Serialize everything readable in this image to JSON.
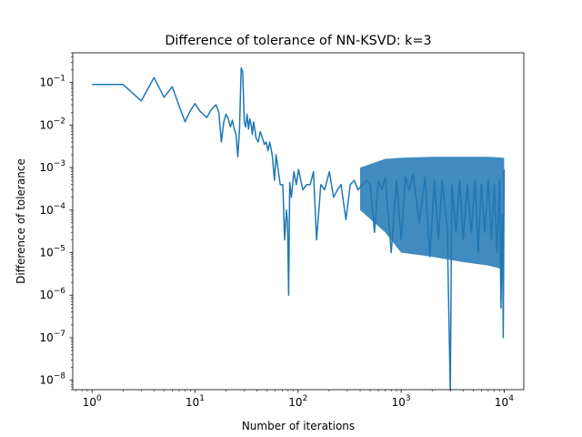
{
  "chart_data": {
    "type": "line",
    "title": "Difference of tolerance of NN-KSVD: k=3",
    "xlabel": "Number of iterations",
    "ylabel": "Difference of tolerance",
    "xscale": "log",
    "yscale": "log",
    "xlim": [
      0.65,
      15500
    ],
    "ylim": [
      6e-09,
      0.5
    ],
    "grid": false,
    "legend": "none",
    "line_color": "#1f77b4",
    "x_ticks": [
      {
        "value": 1,
        "base": "10",
        "exp": "0"
      },
      {
        "value": 10,
        "base": "10",
        "exp": "1"
      },
      {
        "value": 100,
        "base": "10",
        "exp": "2"
      },
      {
        "value": 1000,
        "base": "10",
        "exp": "3"
      },
      {
        "value": 10000,
        "base": "10",
        "exp": "4"
      }
    ],
    "y_ticks": [
      {
        "value": 1e-08,
        "base": "10",
        "exp": "−8"
      },
      {
        "value": 1e-07,
        "base": "10",
        "exp": "−7"
      },
      {
        "value": 1e-06,
        "base": "10",
        "exp": "−6"
      },
      {
        "value": 1e-05,
        "base": "10",
        "exp": "−5"
      },
      {
        "value": 0.0001,
        "base": "10",
        "exp": "−4"
      },
      {
        "value": 0.001,
        "base": "10",
        "exp": "−3"
      },
      {
        "value": 0.01,
        "base": "10",
        "exp": "−2"
      },
      {
        "value": 0.1,
        "base": "10",
        "exp": "−1"
      }
    ],
    "series": [
      {
        "x": [
          0,
          1,
          2,
          3,
          4,
          5,
          6,
          7,
          8,
          9,
          10,
          11,
          12,
          13,
          14,
          15,
          16,
          17,
          18,
          19,
          20,
          21,
          22,
          23,
          24,
          25,
          26,
          27,
          28,
          29,
          30,
          31,
          32,
          33,
          34,
          35,
          36,
          37,
          38,
          39,
          40,
          42,
          44,
          46,
          48,
          50,
          52,
          55,
          58,
          60,
          63,
          66,
          70,
          73,
          76,
          78,
          80,
          82,
          85,
          90,
          95,
          100,
          110,
          120,
          130,
          140,
          150,
          165,
          180,
          200,
          220,
          240,
          260,
          290,
          320,
          350,
          380,
          420,
          460,
          500,
          550,
          600,
          650,
          700,
          800,
          900,
          1000,
          1100,
          1200,
          1300,
          1500,
          1700,
          1900,
          2100,
          2300,
          2500,
          2800,
          3000,
          3100,
          3400,
          3700,
          4000,
          4400,
          4800,
          5200,
          5600,
          6000,
          6500,
          7000,
          7500,
          8000,
          8500,
          9000,
          9300,
          9600,
          9800,
          10000
        ],
        "y": [
          0.09,
          0.09,
          0.037,
          0.13,
          0.045,
          0.08,
          0.028,
          0.012,
          0.022,
          0.032,
          0.022,
          0.018,
          0.015,
          0.021,
          0.026,
          0.03,
          0.02,
          0.004,
          0.012,
          0.018,
          0.014,
          0.009,
          0.013,
          0.008,
          0.006,
          0.0018,
          0.008,
          0.22,
          0.18,
          0.012,
          0.009,
          0.018,
          0.008,
          0.014,
          0.01,
          0.006,
          0.012,
          0.008,
          0.005,
          0.0045,
          0.004,
          0.007,
          0.005,
          0.0035,
          0.004,
          0.0025,
          0.004,
          0.002,
          0.0005,
          0.002,
          0.0009,
          0.0004,
          0.0004,
          2e-05,
          0.0001,
          5e-05,
          1e-06,
          0.00045,
          0.0002,
          0.0008,
          0.0004,
          0.0009,
          0.0003,
          0.0004,
          0.0004,
          0.0008,
          2e-05,
          0.0004,
          0.0003,
          0.0008,
          0.0002,
          0.0003,
          0.0004,
          6e-05,
          0.0004,
          0.0005,
          0.0003,
          0.0004,
          0.0005,
          0.0004,
          3e-05,
          0.0005,
          0.0003,
          0.0006,
          1e-05,
          0.0005,
          2e-05,
          0.0006,
          0.0003,
          0.0007,
          5e-05,
          0.0006,
          8e-06,
          0.0005,
          2e-05,
          0.0005,
          4e-05,
          5e-09,
          0.0004,
          3e-05,
          0.0005,
          2e-05,
          0.0004,
          3e-05,
          0.0005,
          1e-05,
          0.0004,
          3e-05,
          0.0005,
          2e-05,
          0.0004,
          1e-05,
          0.0005,
          5e-07,
          8e-05,
          1e-07,
          0.0009
        ],
        "band": [
          {
            "x": 400,
            "upper": 0.001,
            "lower": 0.0001
          },
          {
            "x": 700,
            "upper": 0.0016,
            "lower": 3e-05
          },
          {
            "x": 1000,
            "upper": 0.0017,
            "lower": 1e-05
          },
          {
            "x": 2000,
            "upper": 0.0018,
            "lower": 8e-06
          },
          {
            "x": 4000,
            "upper": 0.0018,
            "lower": 6e-06
          },
          {
            "x": 7000,
            "upper": 0.0018,
            "lower": 5e-06
          },
          {
            "x": 10000,
            "upper": 0.0017,
            "lower": 4e-06
          }
        ]
      }
    ]
  }
}
